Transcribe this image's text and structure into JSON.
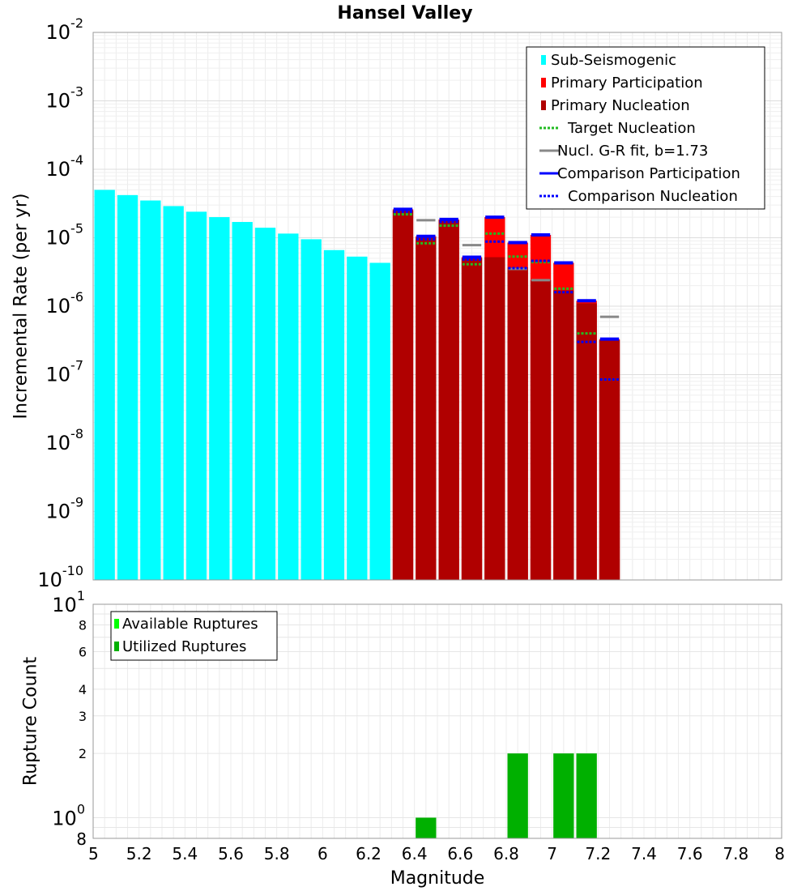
{
  "chart_data": [
    {
      "type": "bar",
      "title": "Hansel Valley",
      "xlabel": "Magnitude",
      "ylabel": "Incremental Rate (per yr)",
      "yscale": "log",
      "xlim": [
        5,
        8
      ],
      "ylim": [
        1e-10,
        0.01
      ],
      "grid": true,
      "legend_position": "top-right",
      "bin_width": 0.1,
      "x_ticks": [
        "5",
        "5.2",
        "5.4",
        "5.6",
        "5.8",
        "6",
        "6.2",
        "6.4",
        "6.6",
        "6.8",
        "7",
        "7.2",
        "7.4",
        "7.6",
        "7.8",
        "8"
      ],
      "y_ticks": [
        {
          "base": "10",
          "exp": "-2"
        },
        {
          "base": "10",
          "exp": "-3"
        },
        {
          "base": "10",
          "exp": "-4"
        },
        {
          "base": "10",
          "exp": "-5"
        },
        {
          "base": "10",
          "exp": "-6"
        },
        {
          "base": "10",
          "exp": "-7"
        },
        {
          "base": "10",
          "exp": "-8"
        },
        {
          "base": "10",
          "exp": "-9"
        },
        {
          "base": "10",
          "exp": "-10"
        }
      ],
      "legend": [
        {
          "label": "Sub-Seismogenic",
          "kind": "box",
          "color": "#00ffff"
        },
        {
          "label": "Primary Participation",
          "kind": "box",
          "color": "#ff0000"
        },
        {
          "label": "Primary Nucleation",
          "kind": "box",
          "color": "#b00000"
        },
        {
          "label": "Target Nucleation",
          "kind": "dotted",
          "color": "#22bb22"
        },
        {
          "label": "Nucl. G-R fit, b=1.73",
          "kind": "solid",
          "color": "#888888"
        },
        {
          "label": "Comparison Participation",
          "kind": "solid",
          "color": "#0000ff"
        },
        {
          "label": "Comparison Nucleation",
          "kind": "dotted",
          "color": "#0000ff"
        }
      ],
      "series": [
        {
          "name": "Sub-Seismogenic",
          "color": "#00ffff",
          "x": [
            5.05,
            5.15,
            5.25,
            5.35,
            5.45,
            5.55,
            5.65,
            5.75,
            5.85,
            5.95,
            6.05,
            6.15,
            6.25
          ],
          "values": [
            5e-05,
            4.2e-05,
            3.5e-05,
            2.9e-05,
            2.4e-05,
            2e-05,
            1.7e-05,
            1.4e-05,
            1.15e-05,
            9.5e-06,
            6.6e-06,
            5.3e-06,
            4.3e-06
          ]
        },
        {
          "name": "Primary Participation",
          "color": "#ff0000",
          "x": [
            6.35,
            6.45,
            6.55,
            6.65,
            6.75,
            6.85,
            6.95,
            7.05,
            7.15,
            7.25
          ],
          "values": [
            2.6e-05,
            1.05e-05,
            1.85e-05,
            5.2e-06,
            2e-05,
            8.5e-06,
            1.1e-05,
            4.3e-06,
            1.2e-06,
            3.3e-07
          ]
        },
        {
          "name": "Primary Nucleation",
          "color": "#b00000",
          "x": [
            6.35,
            6.45,
            6.55,
            6.65,
            6.75,
            6.85,
            6.95,
            7.05,
            7.15,
            7.25
          ],
          "values": [
            2.5e-05,
            1e-05,
            1.8e-05,
            5e-06,
            5.2e-06,
            3.7e-06,
            2.4e-06,
            1.7e-06,
            1.1e-06,
            3.2e-07
          ]
        },
        {
          "name": "Target Nucleation",
          "color": "#22bb22",
          "x": [
            6.35,
            6.45,
            6.55,
            6.65,
            6.75,
            6.85,
            6.95,
            7.05,
            7.15,
            7.25
          ],
          "values": [
            2.2e-05,
            8.3e-06,
            1.5e-05,
            4.1e-06,
            1.15e-05,
            5.3e-06,
            4.4e-06,
            1.8e-06,
            4e-07,
            8.5e-08
          ]
        },
        {
          "name": "Nucl. G-R fit, b=1.73",
          "color": "#888888",
          "x": [
            6.45,
            6.65,
            6.85,
            6.95,
            7.25
          ],
          "values": [
            1.8e-05,
            7.8e-06,
            3.5e-06,
            2.4e-06,
            7e-07
          ]
        },
        {
          "name": "Comparison Participation",
          "color": "#0000ff",
          "x": [
            6.35,
            6.45,
            6.55,
            6.65,
            6.75,
            6.85,
            6.95,
            7.05,
            7.15,
            7.25
          ],
          "values": [
            2.6e-05,
            1.05e-05,
            1.85e-05,
            5.2e-06,
            2e-05,
            8.5e-06,
            1.1e-05,
            4.3e-06,
            1.2e-06,
            3.3e-07
          ]
        },
        {
          "name": "Comparison Nucleation",
          "color": "#0000ff",
          "x": [
            6.35,
            6.45,
            6.55,
            6.65,
            6.75,
            6.85,
            6.95,
            7.05,
            7.15,
            7.25
          ],
          "values": [
            2.4e-05,
            9.5e-06,
            1.7e-05,
            4.8e-06,
            8.8e-06,
            3.6e-06,
            4.6e-06,
            1.6e-06,
            3e-07,
            8.5e-08
          ]
        }
      ]
    },
    {
      "type": "bar",
      "title": "",
      "xlabel": "Magnitude",
      "ylabel": "Rupture Count",
      "yscale": "log",
      "xlim": [
        5,
        8
      ],
      "ylim": [
        0.8,
        10
      ],
      "grid": true,
      "legend_position": "top-left",
      "x_ticks": [
        "5",
        "5.2",
        "5.4",
        "5.6",
        "5.8",
        "6",
        "6.2",
        "6.4",
        "6.6",
        "6.8",
        "7",
        "7.2",
        "7.4",
        "7.6",
        "7.8",
        "8"
      ],
      "y_major_ticks": [
        {
          "value": 10,
          "base": "10",
          "exp": "1"
        },
        {
          "value": 1,
          "base": "10",
          "exp": "0"
        }
      ],
      "y_minor_ticks": [
        {
          "value": 8,
          "label": "8"
        },
        {
          "value": 6,
          "label": "6"
        },
        {
          "value": 4,
          "label": "4"
        },
        {
          "value": 3,
          "label": "3"
        },
        {
          "value": 2,
          "label": "2"
        }
      ],
      "y_bottom_label": {
        "value": 0.8,
        "label": "8"
      },
      "legend": [
        {
          "label": "Available Ruptures",
          "kind": "box",
          "color": "#00ff00"
        },
        {
          "label": "Utilized Ruptures",
          "kind": "box",
          "color": "#00b000"
        }
      ],
      "series": [
        {
          "name": "Utilized Ruptures",
          "color": "#00b000",
          "x": [
            6.45,
            6.85,
            7.05,
            7.15
          ],
          "values": [
            1,
            2,
            2,
            2
          ]
        }
      ]
    }
  ]
}
